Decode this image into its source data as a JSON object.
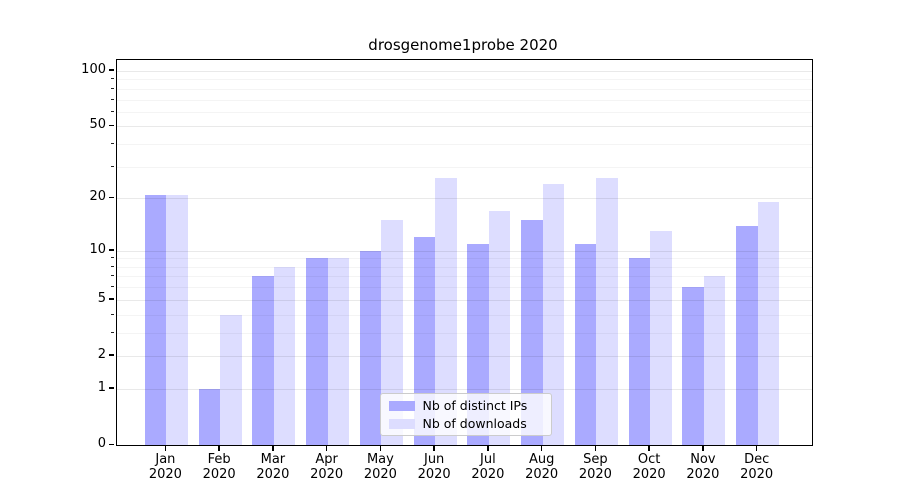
{
  "chart_data": {
    "type": "bar",
    "title": "drosgenome1probe 2020",
    "categories": [
      "Jan",
      "Feb",
      "Mar",
      "Apr",
      "May",
      "Jun",
      "Jul",
      "Aug",
      "Sep",
      "Oct",
      "Nov",
      "Dec"
    ],
    "xtick_year": "2020",
    "series": [
      {
        "name": "Nb of distinct IPs",
        "color": "#aaaaff",
        "values": [
          21,
          1,
          7,
          9,
          10,
          12,
          11,
          15,
          11,
          9,
          6,
          14
        ]
      },
      {
        "name": "Nb of downloads",
        "color": "#ddddff",
        "values": [
          21,
          4,
          8,
          9,
          15,
          26,
          17,
          24,
          26,
          13,
          7,
          19
        ]
      }
    ],
    "yscale": "log1p",
    "ytick_values": [
      0,
      1,
      2,
      5,
      10,
      20,
      50,
      100
    ],
    "yminor_values": [
      3,
      4,
      6,
      7,
      8,
      9,
      30,
      40,
      60,
      70,
      80,
      90
    ],
    "ylim": [
      0,
      115
    ],
    "grid": true,
    "legend_position": "lower center",
    "axis_color": "#000000",
    "background_color": "#ffffff"
  }
}
